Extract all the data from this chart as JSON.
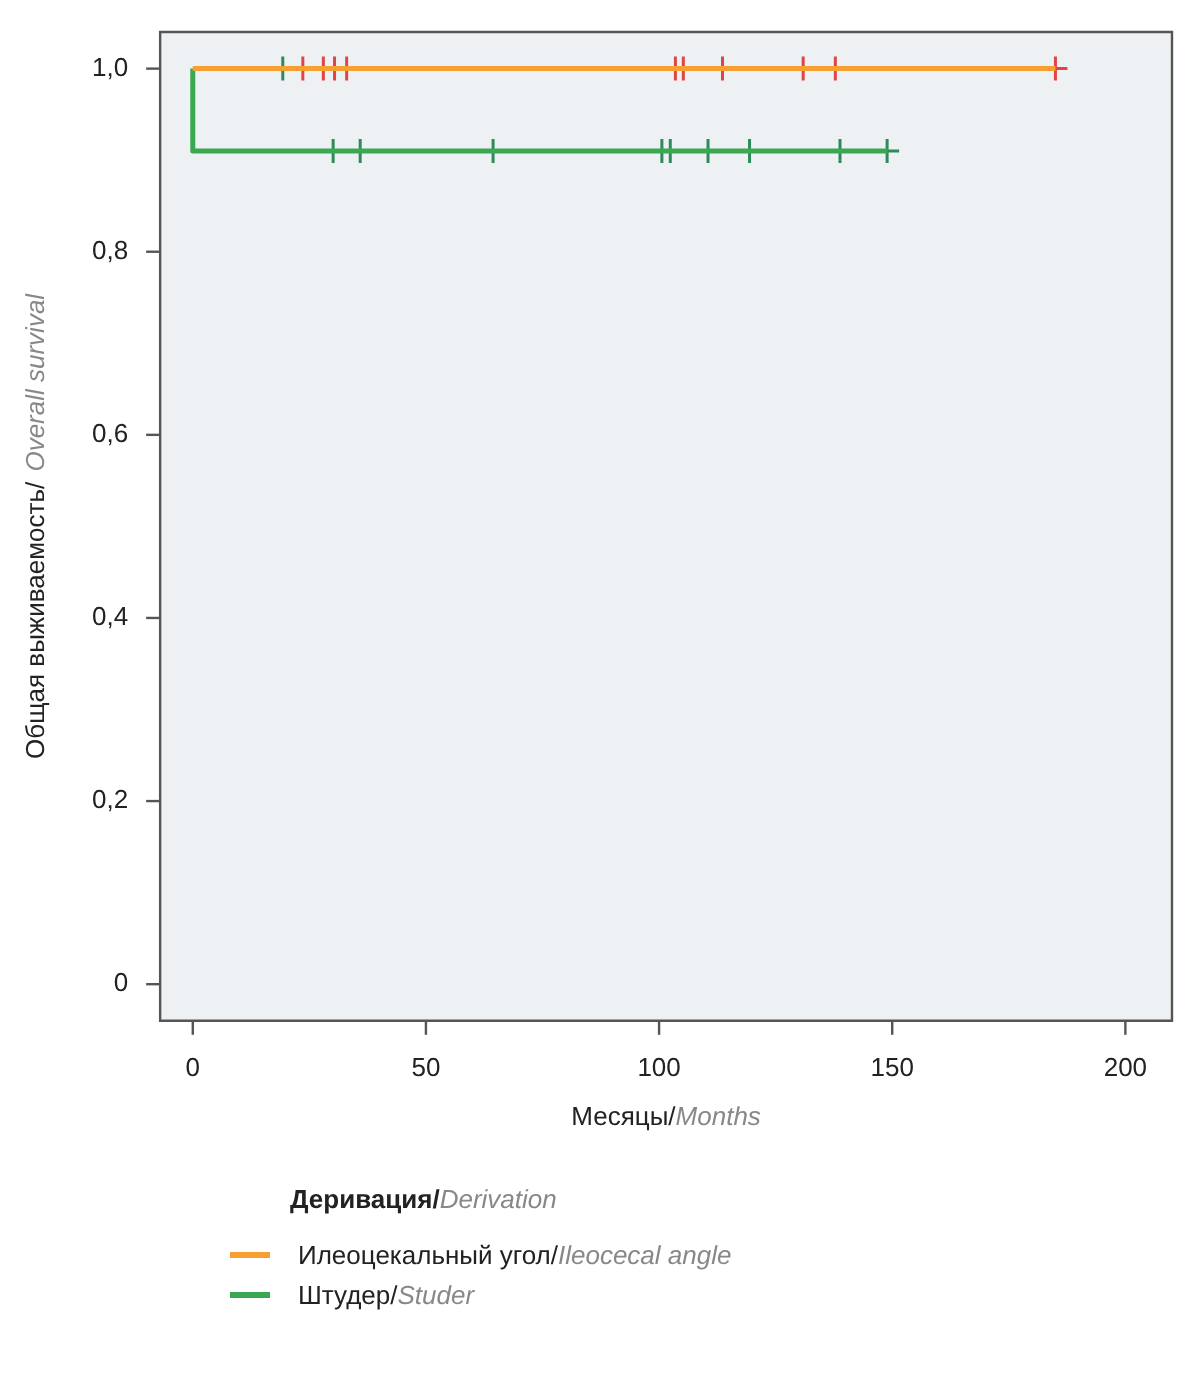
{
  "chart_data": {
    "type": "step",
    "xlabel": "Месяцы/Months",
    "ylabel": "Общая выживаемость/Overall survival",
    "legend_title": "Деривация/Derivation",
    "series": [
      {
        "name": "Илеоцекальный угол/Ileocecal angle",
        "color": "#f5a030",
        "x": [
          0,
          185
        ],
        "values": [
          1,
          1
        ]
      },
      {
        "name": "Штудер/Studer",
        "color": "#3aa850",
        "x": [
          0,
          23,
          149
        ],
        "values": [
          1,
          0.91,
          0.91
        ]
      },
      {
        "type": "scatter",
        "color": "#e04545",
        "marker": "cross",
        "x": [
          23.6,
          28,
          30.4,
          33,
          103.5,
          105.2,
          113.6,
          130.9,
          137.8,
          185
        ],
        "values": [
          1,
          1,
          1,
          1,
          1,
          1,
          1,
          1,
          1,
          1
        ]
      },
      {
        "type": "scatter",
        "color": "#2f8a5a",
        "marker": "cross",
        "x": [
          19.3,
          30.1,
          35.9,
          64.4,
          100.6,
          102.4,
          110.5,
          119.4,
          138.8,
          148.9
        ],
        "values": [
          1,
          0.91,
          0.91,
          0.91,
          0.91,
          0.91,
          0.91,
          0.91,
          0.91,
          0.91
        ]
      }
    ],
    "xlim": [
      -7,
      210
    ],
    "xticks": [
      0,
      50,
      100,
      150,
      200
    ],
    "ylim": [
      -0.04,
      1.04
    ],
    "yticks": [
      {
        "value": 0,
        "label": "0"
      },
      {
        "value": 0.2,
        "label": "0,2"
      },
      {
        "value": 0.4,
        "label": "0,4"
      },
      {
        "value": 0.6,
        "label": "0,6"
      },
      {
        "value": 0.8,
        "label": "0,8"
      },
      {
        "value": 1,
        "label": "1,0"
      }
    ],
    "grid": false,
    "legend": "bottom"
  }
}
